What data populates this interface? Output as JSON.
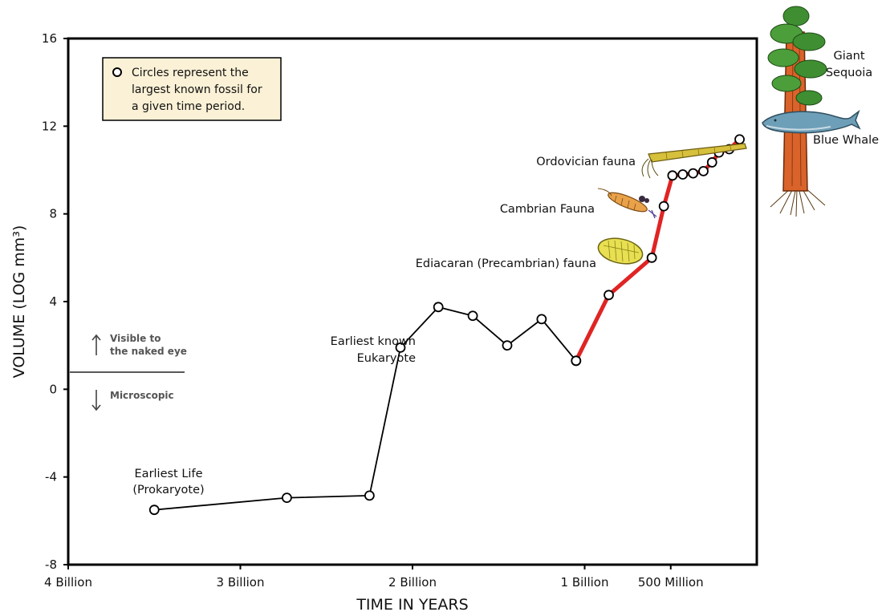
{
  "chart_data": {
    "type": "line",
    "xlabel": "TIME IN YEARS",
    "ylabel": "VOLUME (LOG mm³)",
    "xlim": [
      4000000000,
      0
    ],
    "ylim": [
      -8,
      16
    ],
    "x_ticks": [
      {
        "value": 4000000000,
        "label": "4 Billion"
      },
      {
        "value": 3000000000,
        "label": "3 Billion"
      },
      {
        "value": 2000000000,
        "label": "2 Billion"
      },
      {
        "value": 1000000000,
        "label": "1 Billion"
      },
      {
        "value": 500000000,
        "label": "500 Million"
      }
    ],
    "y_ticks": [
      16,
      12,
      8,
      4,
      0,
      -4,
      -8
    ],
    "series": [
      {
        "color": "#000000",
        "points": [
          [
            3500000000,
            -5.5
          ],
          [
            2730000000,
            -4.95
          ],
          [
            2250000000,
            -4.85
          ],
          [
            2070000000,
            1.9
          ],
          [
            1850000000,
            3.75
          ],
          [
            1650000000,
            3.35
          ],
          [
            1450000000,
            2.0
          ],
          [
            1250000000,
            3.2
          ],
          [
            1050000000,
            1.3
          ]
        ]
      },
      {
        "color": "#e02424",
        "points": [
          [
            1050000000,
            1.3
          ],
          [
            860000000,
            4.3
          ],
          [
            610000000,
            6.0
          ],
          [
            540000000,
            8.35
          ],
          [
            490000000,
            9.75
          ],
          [
            430000000,
            9.8
          ],
          [
            370000000,
            9.85
          ],
          [
            310000000,
            9.95
          ],
          [
            260000000,
            10.35
          ],
          [
            220000000,
            10.8
          ],
          [
            160000000,
            10.95
          ],
          [
            100000000,
            11.4
          ]
        ]
      }
    ],
    "annotations": {
      "earliest_life": [
        "Earliest Life",
        "(Prokaryote)"
      ],
      "eukaryote": [
        "Earliest known",
        "Eukaryote"
      ],
      "ediacaran": "Ediacaran (Precambrian) fauna",
      "cambrian": "Cambrian Fauna",
      "ordovician": "Ordovician fauna",
      "sequoia": [
        "Giant",
        "Sequoia"
      ],
      "whale": "Blue Whale",
      "visible": [
        "Visible to",
        "the naked eye"
      ],
      "microscopic": "Microscopic"
    },
    "legend": {
      "placement": "top-left",
      "lines": [
        "Circles represent the",
        "largest known fossil for",
        "a given time period."
      ]
    },
    "grid": false
  },
  "colors": {
    "legend_bg": "#fbf1d6",
    "red_segment": "#e02424",
    "line": "#000000"
  }
}
